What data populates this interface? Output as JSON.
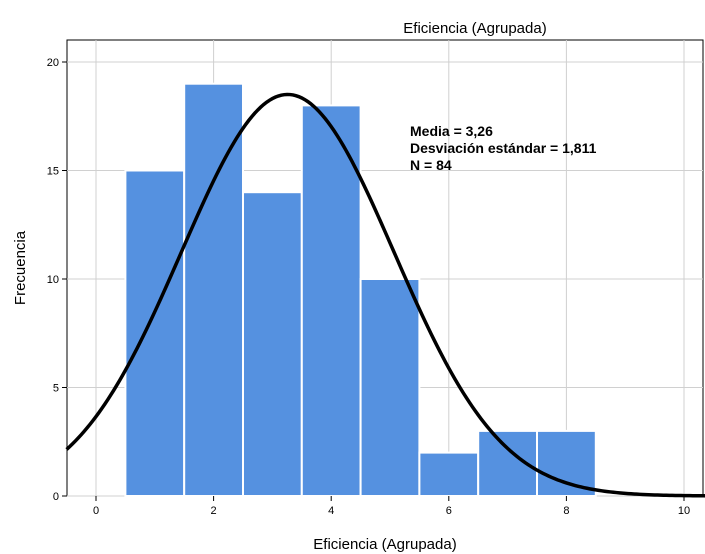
{
  "chart_data": {
    "type": "histogram",
    "title": "Eficiencia (Agrupada)",
    "xlabel": "Eficiencia (Agrupada)",
    "ylabel": "Frecuencia",
    "xlim": [
      -0.5,
      10.4
    ],
    "ylim": [
      0,
      21
    ],
    "x_ticks": [
      0,
      2,
      4,
      6,
      8,
      10
    ],
    "y_ticks": [
      0,
      5,
      10,
      15,
      20
    ],
    "bins": [
      {
        "x": 1,
        "count": 15
      },
      {
        "x": 2,
        "count": 19
      },
      {
        "x": 3,
        "count": 14
      },
      {
        "x": 4,
        "count": 18
      },
      {
        "x": 5,
        "count": 10
      },
      {
        "x": 6,
        "count": 2
      },
      {
        "x": 7,
        "count": 3
      },
      {
        "x": 8,
        "count": 3
      }
    ],
    "bin_width": 1,
    "normal_curve": {
      "mean": 3.26,
      "sd": 1.811,
      "n": 84
    },
    "stats_lines": [
      "Media = 3,26",
      "Desviación estándar = 1,811",
      "N = 84"
    ],
    "grid": true,
    "bar_color": "#5591e0",
    "curve_color": "#000000"
  }
}
